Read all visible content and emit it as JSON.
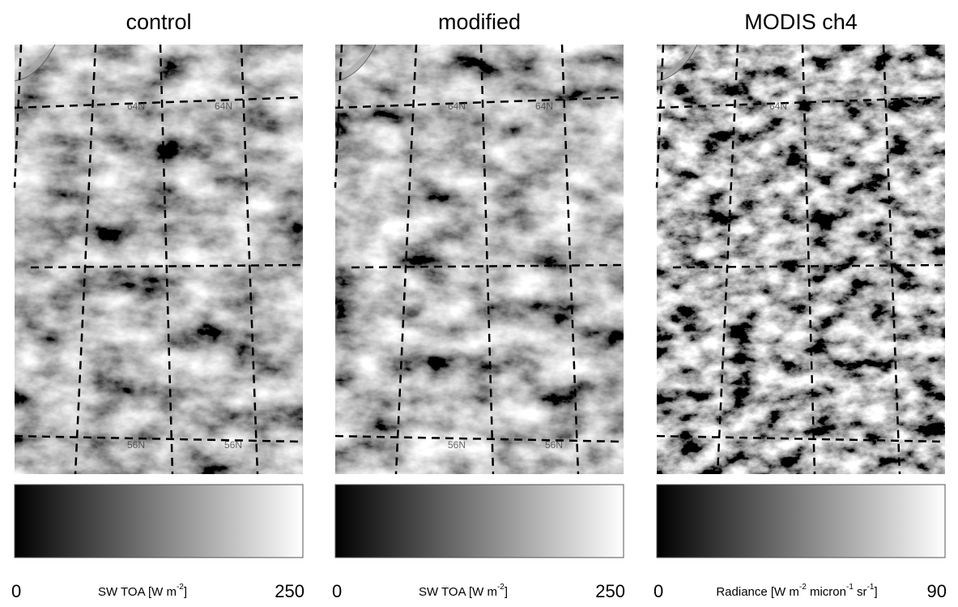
{
  "panels": [
    {
      "title": "control",
      "grid_labels": [
        "64N",
        "64N",
        "56N",
        "56N"
      ],
      "colorbar": {
        "min": 0,
        "max": 250,
        "label": [
          {
            "text": "SW TOA [W m"
          },
          {
            "sup": "-2"
          },
          {
            "text": "]"
          }
        ]
      }
    },
    {
      "title": "modified",
      "grid_labels": [
        "64N",
        "64N",
        "56N",
        "56N"
      ],
      "colorbar": {
        "min": 0,
        "max": 250,
        "label": [
          {
            "text": "SW TOA [W m"
          },
          {
            "sup": "-2"
          },
          {
            "text": "]"
          }
        ]
      }
    },
    {
      "title": "MODIS ch4",
      "grid_labels": [
        "64N"
      ],
      "colorbar": {
        "min": 0,
        "max": 90,
        "label": [
          {
            "text": "Radiance [W m"
          },
          {
            "sup": "-2"
          },
          {
            "text": " micron"
          },
          {
            "sup": "-1"
          },
          {
            "text": " sr"
          },
          {
            "sup": "-1"
          },
          {
            "text": "]"
          }
        ]
      }
    }
  ]
}
